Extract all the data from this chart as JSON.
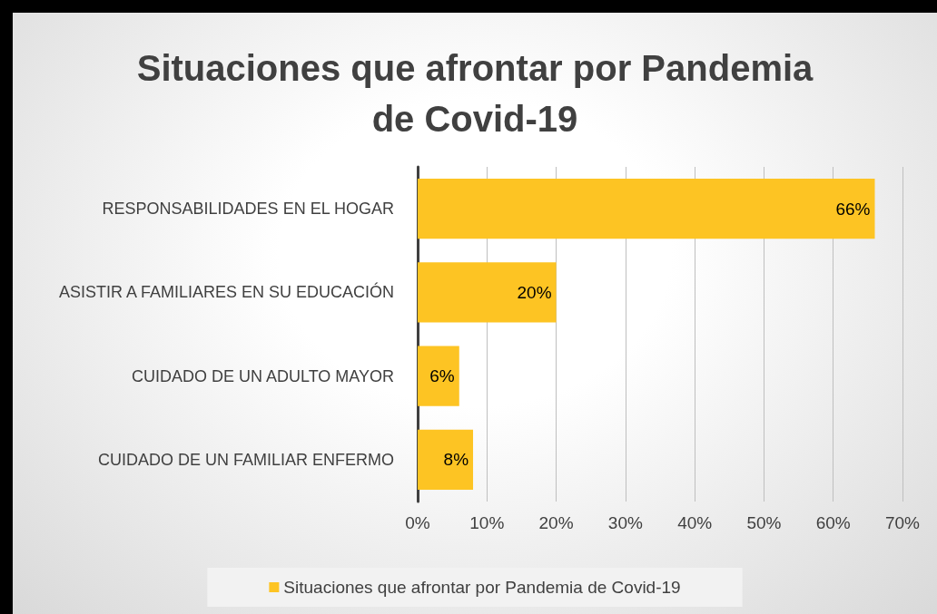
{
  "chart_data": {
    "type": "bar",
    "orientation": "horizontal",
    "title": "Situaciones que afrontar por Pandemia\nde Covid-19",
    "categories": [
      "RESPONSABILIDADES EN EL HOGAR",
      "ASISTIR A FAMILIARES EN SU EDUCACIÓN",
      "CUIDADO DE UN ADULTO MAYOR",
      "CUIDADO DE UN FAMILIAR ENFERMO"
    ],
    "series": [
      {
        "name": "Situaciones que afrontar por Pandemia de Covid-19",
        "color": "#fdc423",
        "values": [
          66,
          20,
          6,
          8
        ],
        "value_labels": [
          "66%",
          "20%",
          "6%",
          "8%"
        ]
      }
    ],
    "xlim": [
      0,
      70
    ],
    "xticks": [
      {
        "value": 0,
        "label": "0%"
      },
      {
        "value": 10,
        "label": "10%"
      },
      {
        "value": 20,
        "label": "20%"
      },
      {
        "value": 30,
        "label": "30%"
      },
      {
        "value": 40,
        "label": "40%"
      },
      {
        "value": 50,
        "label": "50%"
      },
      {
        "value": 60,
        "label": "60%"
      },
      {
        "value": 70,
        "label": "70%"
      }
    ],
    "grid": "x",
    "legend": "bottom"
  }
}
